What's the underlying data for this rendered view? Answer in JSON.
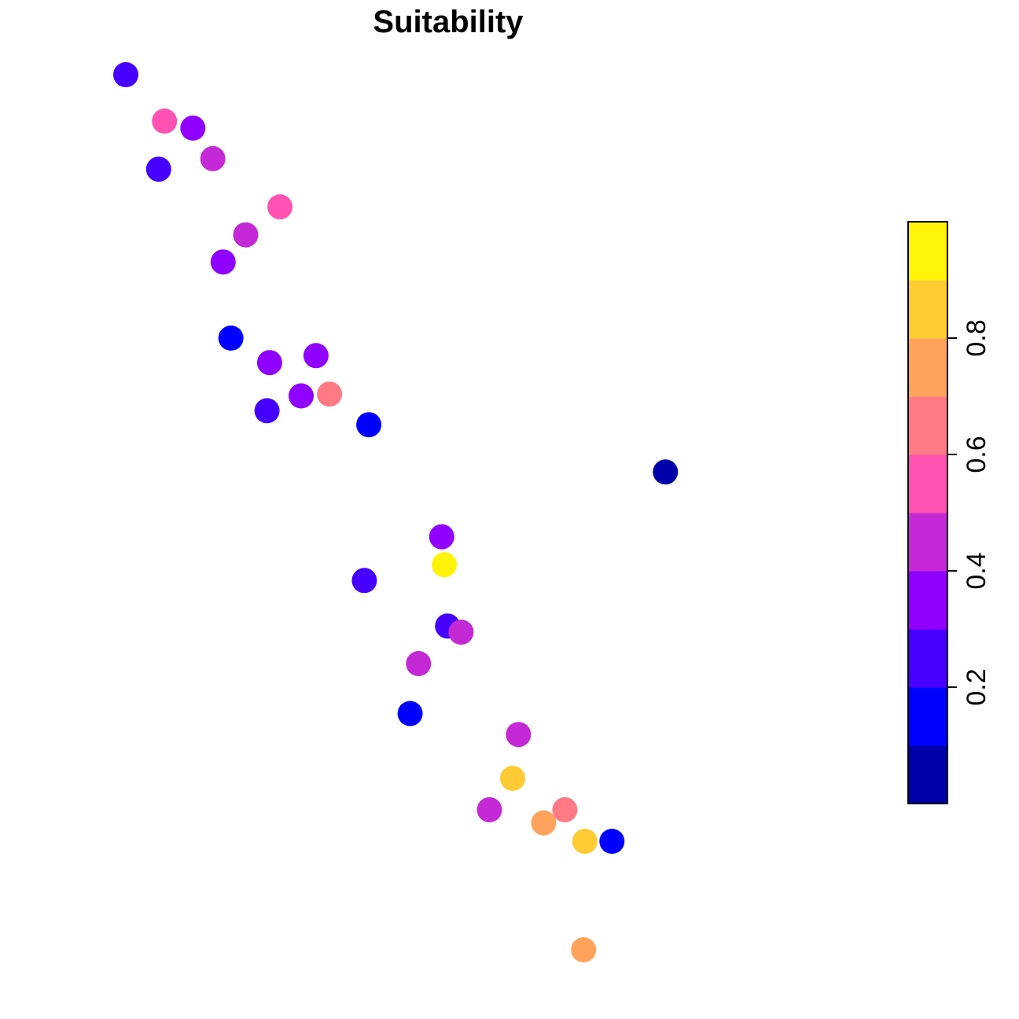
{
  "chart_data": {
    "type": "scatter",
    "title": "Suitability",
    "xlabel": "",
    "ylabel": "",
    "axes_visible": false,
    "grid": false,
    "legend": "right",
    "points": [
      {
        "x": 0.0,
        "y": 1.0,
        "value": 0.25
      },
      {
        "x": 0.06,
        "y": 0.947,
        "value": 0.55
      },
      {
        "x": 0.104,
        "y": 0.939,
        "value": 0.35
      },
      {
        "x": 0.051,
        "y": 0.892,
        "value": 0.25
      },
      {
        "x": 0.135,
        "y": 0.904,
        "value": 0.45
      },
      {
        "x": 0.239,
        "y": 0.849,
        "value": 0.55
      },
      {
        "x": 0.186,
        "y": 0.817,
        "value": 0.45
      },
      {
        "x": 0.151,
        "y": 0.786,
        "value": 0.35
      },
      {
        "x": 0.163,
        "y": 0.699,
        "value": 0.15
      },
      {
        "x": 0.223,
        "y": 0.671,
        "value": 0.35
      },
      {
        "x": 0.295,
        "y": 0.679,
        "value": 0.35
      },
      {
        "x": 0.272,
        "y": 0.633,
        "value": 0.35
      },
      {
        "x": 0.316,
        "y": 0.635,
        "value": 0.65
      },
      {
        "x": 0.219,
        "y": 0.616,
        "value": 0.25
      },
      {
        "x": 0.377,
        "y": 0.6,
        "value": 0.15
      },
      {
        "x": 0.837,
        "y": 0.546,
        "value": 0.05
      },
      {
        "x": 0.49,
        "y": 0.472,
        "value": 0.35
      },
      {
        "x": 0.494,
        "y": 0.44,
        "value": 0.95
      },
      {
        "x": 0.37,
        "y": 0.422,
        "value": 0.25
      },
      {
        "x": 0.499,
        "y": 0.37,
        "value": 0.25
      },
      {
        "x": 0.52,
        "y": 0.363,
        "value": 0.45
      },
      {
        "x": 0.454,
        "y": 0.327,
        "value": 0.45
      },
      {
        "x": 0.441,
        "y": 0.27,
        "value": 0.15
      },
      {
        "x": 0.609,
        "y": 0.246,
        "value": 0.45
      },
      {
        "x": 0.6,
        "y": 0.196,
        "value": 0.85
      },
      {
        "x": 0.564,
        "y": 0.16,
        "value": 0.45
      },
      {
        "x": 0.648,
        "y": 0.145,
        "value": 0.75
      },
      {
        "x": 0.681,
        "y": 0.16,
        "value": 0.65
      },
      {
        "x": 0.712,
        "y": 0.124,
        "value": 0.85
      },
      {
        "x": 0.754,
        "y": 0.124,
        "value": 0.15
      },
      {
        "x": 0.71,
        "y": 0.0,
        "value": 0.75
      }
    ],
    "colorbar": {
      "range": [
        0,
        1
      ],
      "breaks": [
        0.0,
        0.1,
        0.2,
        0.3,
        0.4,
        0.5,
        0.6,
        0.7,
        0.8,
        0.9,
        1.0
      ],
      "colors": [
        "#0000AA",
        "#0000FF",
        "#4600FF",
        "#8F00FF",
        "#C429D6",
        "#FF52B2",
        "#FF7A85",
        "#FFA35C",
        "#FFCB33",
        "#FFF30A"
      ],
      "ticks": [
        0.2,
        0.4,
        0.6,
        0.8
      ],
      "tick_labels": [
        "0.2",
        "0.4",
        "0.6",
        "0.8"
      ]
    }
  }
}
